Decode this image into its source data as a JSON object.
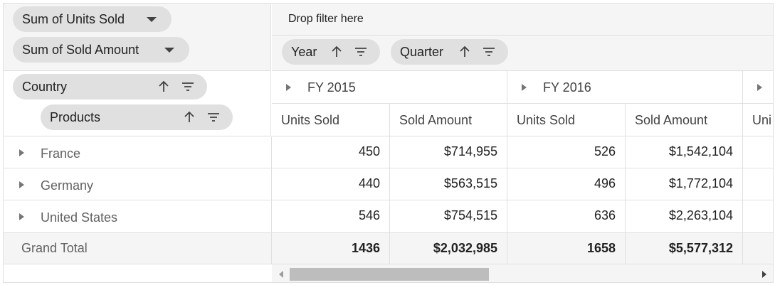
{
  "value_chips": [
    {
      "label": "Sum of Units Sold",
      "icon": "caret-down-icon"
    },
    {
      "label": "Sum of Sold Amount",
      "icon": "caret-down-icon"
    }
  ],
  "filter_area": {
    "placeholder": "Drop filter here"
  },
  "column_chips": [
    {
      "label": "Year",
      "icons": [
        "sort-ascending-icon",
        "filter-icon"
      ]
    },
    {
      "label": "Quarter",
      "icons": [
        "sort-ascending-icon",
        "filter-icon"
      ]
    }
  ],
  "row_chips": [
    {
      "label": "Country",
      "icons": [
        "sort-ascending-icon",
        "filter-icon"
      ]
    },
    {
      "label": "Products",
      "icons": [
        "sort-ascending-icon",
        "filter-icon"
      ]
    }
  ],
  "column_groups": [
    "FY 2015",
    "FY 2016"
  ],
  "measure_headers": [
    "Units Sold",
    "Sold Amount",
    "Units Sold",
    "Sold Amount",
    "Uni"
  ],
  "rows": [
    {
      "label": "France",
      "values": [
        "450",
        "$714,955",
        "526",
        "$1,542,104"
      ]
    },
    {
      "label": "Germany",
      "values": [
        "440",
        "$563,515",
        "496",
        "$1,772,104"
      ]
    },
    {
      "label": "United States",
      "values": [
        "546",
        "$754,515",
        "636",
        "$2,263,104"
      ]
    }
  ],
  "grand_total": {
    "label": "Grand Total",
    "values": [
      "1436",
      "$2,032,985",
      "1658",
      "$5,577,312"
    ]
  },
  "colors": {
    "panel_bg": "#f5f5f5",
    "chip_bg": "#e0e0e0",
    "border": "#e0e0e0",
    "scroll_thumb": "#bdbdbd"
  }
}
